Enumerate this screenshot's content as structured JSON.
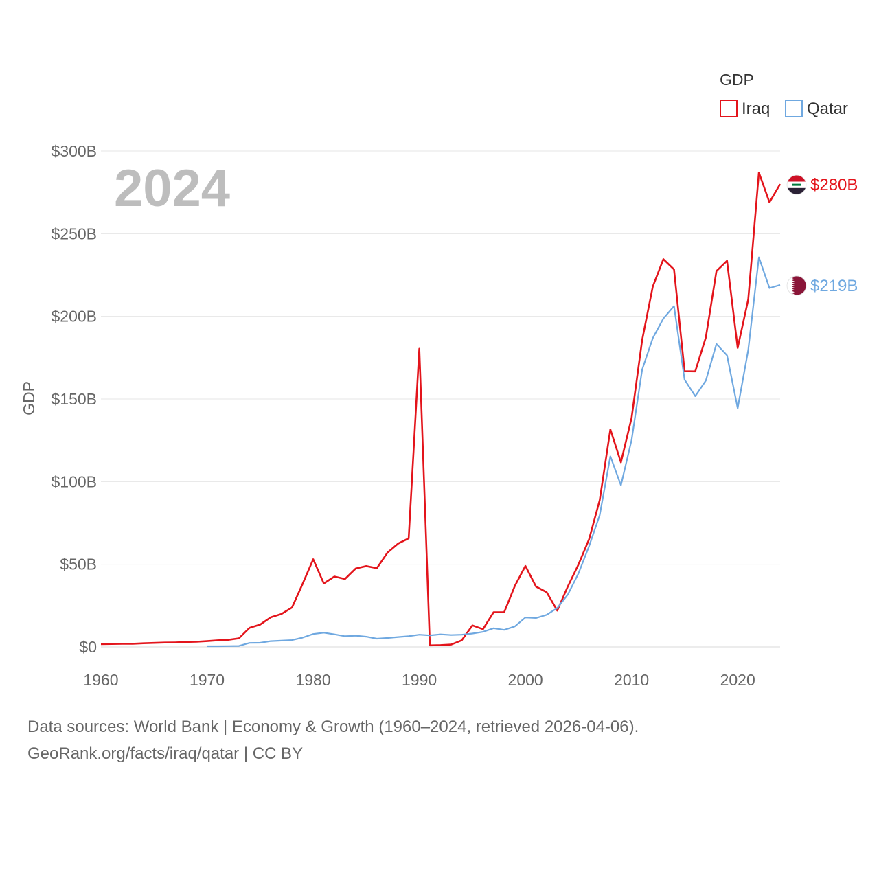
{
  "chart_data": {
    "type": "line",
    "title": "",
    "year_label": "2024",
    "xlabel": "",
    "ylabel": "GDP",
    "xlim": [
      1960,
      2024
    ],
    "ylim": [
      0,
      300
    ],
    "x_ticks": [
      1960,
      1970,
      1980,
      1990,
      2000,
      2010,
      2020
    ],
    "y_ticks": [
      0,
      50,
      100,
      150,
      200,
      250,
      300
    ],
    "y_tick_labels": [
      "$0",
      "$50B",
      "$100B",
      "$150B",
      "$200B",
      "$250B",
      "$300B"
    ],
    "grid": true,
    "legend": {
      "title": "GDP",
      "position": "top-right"
    },
    "series": [
      {
        "name": "Iraq",
        "color": "#e3141b",
        "end_label": "$280B",
        "flag": "iraq-flag",
        "x": [
          1960,
          1961,
          1962,
          1963,
          1964,
          1965,
          1966,
          1967,
          1968,
          1969,
          1970,
          1971,
          1972,
          1973,
          1974,
          1975,
          1976,
          1977,
          1978,
          1979,
          1980,
          1981,
          1982,
          1983,
          1984,
          1985,
          1986,
          1987,
          1988,
          1989,
          1990,
          1991,
          1992,
          1993,
          1994,
          1995,
          1996,
          1997,
          1998,
          1999,
          2000,
          2001,
          2002,
          2003,
          2004,
          2005,
          2006,
          2007,
          2008,
          2009,
          2010,
          2011,
          2012,
          2013,
          2014,
          2015,
          2016,
          2017,
          2018,
          2019,
          2020,
          2021,
          2022,
          2023,
          2024
        ],
        "values": [
          1.7,
          1.8,
          1.9,
          1.9,
          2.2,
          2.4,
          2.6,
          2.7,
          3.0,
          3.1,
          3.5,
          4.0,
          4.3,
          5.2,
          11.5,
          13.5,
          17.9,
          19.9,
          23.8,
          38.1,
          53.0,
          38.4,
          42.6,
          41.1,
          47.4,
          48.9,
          47.6,
          57.0,
          62.5,
          65.7,
          180.4,
          0.9,
          1.1,
          1.4,
          4.0,
          13.0,
          10.7,
          21.0,
          21.0,
          36.9,
          49.0,
          36.5,
          33.1,
          22.0,
          36.6,
          49.9,
          65.1,
          88.8,
          131.6,
          111.7,
          138.5,
          185.7,
          218.0,
          234.6,
          228.4,
          166.8,
          166.7,
          187.2,
          227.4,
          233.6,
          180.9,
          210.3,
          287.0,
          269.0,
          280.0
        ]
      },
      {
        "name": "Qatar",
        "color": "#6fa8e0",
        "end_label": "$219B",
        "flag": "qatar-flag",
        "x": [
          1970,
          1971,
          1972,
          1973,
          1974,
          1975,
          1976,
          1977,
          1978,
          1979,
          1980,
          1981,
          1982,
          1983,
          1984,
          1985,
          1986,
          1987,
          1988,
          1989,
          1990,
          1991,
          1992,
          1993,
          1994,
          1995,
          1996,
          1997,
          1998,
          1999,
          2000,
          2001,
          2002,
          2003,
          2004,
          2005,
          2006,
          2007,
          2008,
          2009,
          2010,
          2011,
          2012,
          2013,
          2014,
          2015,
          2016,
          2017,
          2018,
          2019,
          2020,
          2021,
          2022,
          2023,
          2024
        ],
        "values": [
          0.4,
          0.4,
          0.5,
          0.6,
          2.4,
          2.5,
          3.5,
          3.8,
          4.1,
          5.6,
          7.8,
          8.6,
          7.6,
          6.5,
          6.8,
          6.2,
          5.0,
          5.4,
          6.0,
          6.5,
          7.4,
          7.0,
          7.6,
          7.2,
          7.4,
          8.1,
          9.1,
          11.3,
          10.3,
          12.4,
          17.8,
          17.5,
          19.4,
          23.5,
          31.7,
          44.5,
          60.9,
          79.7,
          115.3,
          97.8,
          125.1,
          167.8,
          186.8,
          198.7,
          206.2,
          161.7,
          151.7,
          161.1,
          183.3,
          176.4,
          144.4,
          179.7,
          235.7,
          217.1,
          219.0
        ]
      }
    ]
  },
  "source": {
    "line1": "Data sources: World Bank | Economy & Growth (1960–2024, retrieved 2026-04-06).",
    "line2": "GeoRank.org/facts/iraq/qatar | CC BY"
  }
}
